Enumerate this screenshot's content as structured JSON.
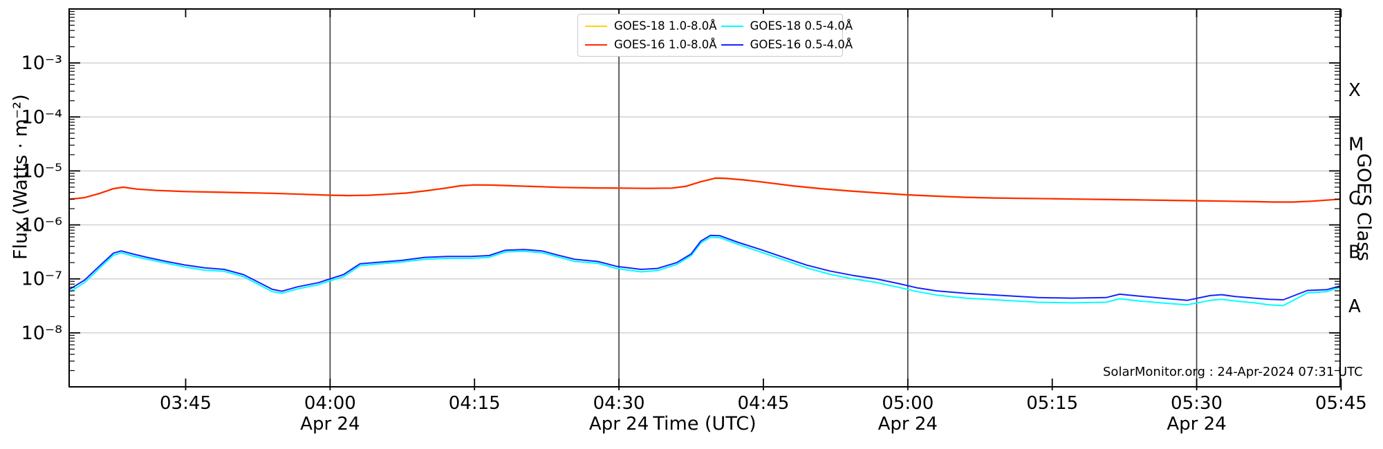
{
  "meta": {
    "source_note": "SolarMonitor.org : 24-Apr-2024 07:31 UTC"
  },
  "axes": {
    "y_label": "Flux (Watts · m⁻²)",
    "y_right_label": "GOES Class",
    "x_label": "Time (UTC)",
    "y_ticks": [
      {
        "label": "10⁻³",
        "exp": -3
      },
      {
        "label": "10⁻⁴",
        "exp": -4
      },
      {
        "label": "10⁻⁵",
        "exp": -5
      },
      {
        "label": "10⁻⁶",
        "exp": -6
      },
      {
        "label": "10⁻⁷",
        "exp": -7
      },
      {
        "label": "10⁻⁸",
        "exp": -8
      }
    ],
    "goes_class_letters": [
      {
        "label": "X",
        "exp": -3.5
      },
      {
        "label": "M",
        "exp": -4.5
      },
      {
        "label": "C",
        "exp": -5.5
      },
      {
        "label": "B",
        "exp": -6.5
      },
      {
        "label": "A",
        "exp": -7.5
      }
    ],
    "x_ticks": [
      {
        "label": "03:45",
        "minutes": 225,
        "day": ""
      },
      {
        "label": "04:00",
        "minutes": 240,
        "day": "Apr 24"
      },
      {
        "label": "04:15",
        "minutes": 255,
        "day": ""
      },
      {
        "label": "04:30",
        "minutes": 270,
        "day": "Apr 24"
      },
      {
        "label": "04:45",
        "minutes": 285,
        "day": ""
      },
      {
        "label": "05:00",
        "minutes": 300,
        "day": "Apr 24"
      },
      {
        "label": "05:15",
        "minutes": 315,
        "day": ""
      },
      {
        "label": "05:30",
        "minutes": 330,
        "day": "Apr 24"
      },
      {
        "label": "05:45",
        "minutes": 345,
        "day": ""
      }
    ],
    "day_line_minutes": [
      240,
      270,
      300,
      330
    ]
  },
  "legend": {
    "items": [
      {
        "label": "GOES-18 1.0-8.0Å",
        "color": "#ffd400"
      },
      {
        "label": "GOES-16 1.0-8.0Å",
        "color": "#ff2a00"
      },
      {
        "label": "GOES-18 0.5-4.0Å",
        "color": "#00ffff"
      },
      {
        "label": "GOES-16 0.5-4.0Å",
        "color": "#1323ff"
      }
    ]
  },
  "chart_data": {
    "type": "line",
    "title": "",
    "xlabel": "Time (UTC)",
    "ylabel": "Flux (Watts · m⁻²)",
    "x_units": "minutes since 00:00 UTC on 24-Apr-2024",
    "x_domain_minutes": [
      212.9,
      344.9
    ],
    "y_log_exp_domain_top_to_bottom": [
      -2,
      -9
    ],
    "grid": "horizontal decade gridlines + vertical day lines at 04:00, 04:30, 05:00, 05:30",
    "legend_position": "top center, 2x2 box",
    "series": [
      {
        "name": "GOES-18 1.0-8.0Å",
        "color": "#ffd400",
        "width": 2.2,
        "note": "hidden beneath GOES-16 long channel",
        "points": [
          [
            213,
            3e-06
          ],
          [
            214.5,
            3.2e-06
          ],
          [
            216,
            3.8e-06
          ],
          [
            217.5,
            4.7e-06
          ],
          [
            218.5,
            5e-06
          ],
          [
            220,
            4.6e-06
          ],
          [
            222,
            4.35e-06
          ],
          [
            225,
            4.15e-06
          ],
          [
            228,
            4.05e-06
          ],
          [
            231,
            3.95e-06
          ],
          [
            234,
            3.85e-06
          ],
          [
            237,
            3.7e-06
          ],
          [
            240,
            3.55e-06
          ],
          [
            242,
            3.5e-06
          ],
          [
            244,
            3.55e-06
          ],
          [
            246,
            3.7e-06
          ],
          [
            248,
            3.9e-06
          ],
          [
            250,
            4.3e-06
          ],
          [
            252,
            4.8e-06
          ],
          [
            253.5,
            5.3e-06
          ],
          [
            255,
            5.5e-06
          ],
          [
            257,
            5.45e-06
          ],
          [
            259,
            5.3e-06
          ],
          [
            261,
            5.15e-06
          ],
          [
            264,
            4.95e-06
          ],
          [
            267,
            4.85e-06
          ],
          [
            270,
            4.8e-06
          ],
          [
            273,
            4.75e-06
          ],
          [
            275.5,
            4.8e-06
          ],
          [
            277,
            5.2e-06
          ],
          [
            278.5,
            6.3e-06
          ],
          [
            280,
            7.35e-06
          ],
          [
            281,
            7.3e-06
          ],
          [
            283,
            6.8e-06
          ],
          [
            285,
            6.2e-06
          ],
          [
            288,
            5.3e-06
          ],
          [
            291,
            4.7e-06
          ],
          [
            294,
            4.25e-06
          ],
          [
            297,
            3.9e-06
          ],
          [
            300,
            3.6e-06
          ],
          [
            303,
            3.4e-06
          ],
          [
            306,
            3.25e-06
          ],
          [
            309,
            3.15e-06
          ],
          [
            312,
            3.1e-06
          ],
          [
            315,
            3.05e-06
          ],
          [
            318,
            3e-06
          ],
          [
            321,
            2.95e-06
          ],
          [
            324,
            2.9e-06
          ],
          [
            327,
            2.85e-06
          ],
          [
            330,
            2.8e-06
          ],
          [
            333,
            2.75e-06
          ],
          [
            336,
            2.7e-06
          ],
          [
            338,
            2.65e-06
          ],
          [
            340,
            2.65e-06
          ],
          [
            342,
            2.75e-06
          ],
          [
            344.9,
            3e-06
          ]
        ]
      },
      {
        "name": "GOES-16 1.0-8.0Å",
        "color": "#ff2a00",
        "width": 2.2,
        "points": [
          [
            213,
            3e-06
          ],
          [
            214.5,
            3.2e-06
          ],
          [
            216,
            3.8e-06
          ],
          [
            217.5,
            4.7e-06
          ],
          [
            218.5,
            5e-06
          ],
          [
            220,
            4.6e-06
          ],
          [
            222,
            4.35e-06
          ],
          [
            225,
            4.15e-06
          ],
          [
            228,
            4.05e-06
          ],
          [
            231,
            3.95e-06
          ],
          [
            234,
            3.85e-06
          ],
          [
            237,
            3.7e-06
          ],
          [
            240,
            3.55e-06
          ],
          [
            242,
            3.5e-06
          ],
          [
            244,
            3.55e-06
          ],
          [
            246,
            3.7e-06
          ],
          [
            248,
            3.9e-06
          ],
          [
            250,
            4.3e-06
          ],
          [
            252,
            4.8e-06
          ],
          [
            253.5,
            5.3e-06
          ],
          [
            255,
            5.5e-06
          ],
          [
            257,
            5.45e-06
          ],
          [
            259,
            5.3e-06
          ],
          [
            261,
            5.15e-06
          ],
          [
            264,
            4.95e-06
          ],
          [
            267,
            4.85e-06
          ],
          [
            270,
            4.8e-06
          ],
          [
            273,
            4.75e-06
          ],
          [
            275.5,
            4.8e-06
          ],
          [
            277,
            5.2e-06
          ],
          [
            278.5,
            6.3e-06
          ],
          [
            280,
            7.35e-06
          ],
          [
            281,
            7.3e-06
          ],
          [
            283,
            6.8e-06
          ],
          [
            285,
            6.2e-06
          ],
          [
            288,
            5.3e-06
          ],
          [
            291,
            4.7e-06
          ],
          [
            294,
            4.25e-06
          ],
          [
            297,
            3.9e-06
          ],
          [
            300,
            3.6e-06
          ],
          [
            303,
            3.4e-06
          ],
          [
            306,
            3.25e-06
          ],
          [
            309,
            3.15e-06
          ],
          [
            312,
            3.1e-06
          ],
          [
            315,
            3.05e-06
          ],
          [
            318,
            3e-06
          ],
          [
            321,
            2.95e-06
          ],
          [
            324,
            2.9e-06
          ],
          [
            327,
            2.85e-06
          ],
          [
            330,
            2.8e-06
          ],
          [
            333,
            2.75e-06
          ],
          [
            336,
            2.7e-06
          ],
          [
            338,
            2.65e-06
          ],
          [
            340,
            2.65e-06
          ],
          [
            342,
            2.75e-06
          ],
          [
            344.9,
            3e-06
          ]
        ]
      },
      {
        "name": "GOES-18 0.5-4.0Å",
        "color": "#00ffff",
        "width": 2.0,
        "points": [
          [
            213,
            5.8e-08
          ],
          [
            214.5,
            8.5e-08
          ],
          [
            216,
            1.55e-07
          ],
          [
            217.5,
            2.75e-07
          ],
          [
            218.3,
            3.05e-07
          ],
          [
            219.5,
            2.65e-07
          ],
          [
            221,
            2.3e-07
          ],
          [
            223,
            1.95e-07
          ],
          [
            225,
            1.65e-07
          ],
          [
            227,
            1.45e-07
          ],
          [
            229,
            1.38e-07
          ],
          [
            231,
            1.1e-07
          ],
          [
            232.5,
            8e-08
          ],
          [
            234,
            5.8e-08
          ],
          [
            235,
            5.4e-08
          ],
          [
            236.6,
            6.5e-08
          ],
          [
            238.8,
            7.8e-08
          ],
          [
            240,
            9.2e-08
          ],
          [
            241.4,
            1.1e-07
          ],
          [
            243.1,
            1.75e-07
          ],
          [
            244.5,
            1.85e-07
          ],
          [
            247.4,
            2.05e-07
          ],
          [
            249.8,
            2.3e-07
          ],
          [
            252.2,
            2.4e-07
          ],
          [
            254.6,
            2.4e-07
          ],
          [
            256.5,
            2.5e-07
          ],
          [
            258.2,
            3.15e-07
          ],
          [
            260.1,
            3.25e-07
          ],
          [
            262,
            3.05e-07
          ],
          [
            263.5,
            2.6e-07
          ],
          [
            265.4,
            2.1e-07
          ],
          [
            267.8,
            1.95e-07
          ],
          [
            269.8,
            1.55e-07
          ],
          [
            271,
            1.45e-07
          ],
          [
            272.3,
            1.35e-07
          ],
          [
            274,
            1.42e-07
          ],
          [
            276,
            1.85e-07
          ],
          [
            277.5,
            2.7e-07
          ],
          [
            278.5,
            4.6e-07
          ],
          [
            279.5,
            5.9e-07
          ],
          [
            280.5,
            5.8e-07
          ],
          [
            282.3,
            4.4e-07
          ],
          [
            284.7,
            3.15e-07
          ],
          [
            287.1,
            2.25e-07
          ],
          [
            289.5,
            1.6e-07
          ],
          [
            291.9,
            1.22e-07
          ],
          [
            294.3,
            1e-07
          ],
          [
            296.7,
            8.6e-08
          ],
          [
            299,
            7e-08
          ],
          [
            301,
            5.8e-08
          ],
          [
            303,
            5e-08
          ],
          [
            306,
            4.4e-08
          ],
          [
            310,
            4e-08
          ],
          [
            313.5,
            3.7e-08
          ],
          [
            317,
            3.6e-08
          ],
          [
            320.6,
            3.7e-08
          ],
          [
            322,
            4.3e-08
          ],
          [
            324,
            3.9e-08
          ],
          [
            327,
            3.5e-08
          ],
          [
            329,
            3.3e-08
          ],
          [
            331.4,
            4e-08
          ],
          [
            332.6,
            4.2e-08
          ],
          [
            334,
            3.9e-08
          ],
          [
            336,
            3.6e-08
          ],
          [
            337.5,
            3.3e-08
          ],
          [
            339,
            3.2e-08
          ],
          [
            341.5,
            5.5e-08
          ],
          [
            343.5,
            5.8e-08
          ],
          [
            344.9,
            7e-08
          ]
        ]
      },
      {
        "name": "GOES-16 0.5-4.0Å",
        "color": "#1323ff",
        "width": 2.0,
        "points": [
          [
            213,
            6.5e-08
          ],
          [
            214.5,
            9.5e-08
          ],
          [
            216,
            1.7e-07
          ],
          [
            217.5,
            3e-07
          ],
          [
            218.3,
            3.3e-07
          ],
          [
            219.5,
            2.9e-07
          ],
          [
            221,
            2.5e-07
          ],
          [
            223,
            2.1e-07
          ],
          [
            225,
            1.8e-07
          ],
          [
            227,
            1.6e-07
          ],
          [
            229,
            1.5e-07
          ],
          [
            231,
            1.2e-07
          ],
          [
            232.5,
            8.8e-08
          ],
          [
            234,
            6.4e-08
          ],
          [
            235,
            5.9e-08
          ],
          [
            236.6,
            7.1e-08
          ],
          [
            238.8,
            8.5e-08
          ],
          [
            240,
            1e-07
          ],
          [
            241.4,
            1.2e-07
          ],
          [
            243.1,
            1.9e-07
          ],
          [
            244.5,
            2e-07
          ],
          [
            247.4,
            2.2e-07
          ],
          [
            249.8,
            2.5e-07
          ],
          [
            252.2,
            2.6e-07
          ],
          [
            254.6,
            2.6e-07
          ],
          [
            256.5,
            2.7e-07
          ],
          [
            258.2,
            3.4e-07
          ],
          [
            260.1,
            3.5e-07
          ],
          [
            262,
            3.3e-07
          ],
          [
            263.5,
            2.8e-07
          ],
          [
            265.4,
            2.3e-07
          ],
          [
            267.8,
            2.1e-07
          ],
          [
            269.8,
            1.7e-07
          ],
          [
            271,
            1.6e-07
          ],
          [
            272.3,
            1.5e-07
          ],
          [
            274,
            1.56e-07
          ],
          [
            276,
            2e-07
          ],
          [
            277.5,
            2.9e-07
          ],
          [
            278.5,
            5e-07
          ],
          [
            279.5,
            6.4e-07
          ],
          [
            280.5,
            6.3e-07
          ],
          [
            282.3,
            4.8e-07
          ],
          [
            284.7,
            3.5e-07
          ],
          [
            287.1,
            2.5e-07
          ],
          [
            289.5,
            1.8e-07
          ],
          [
            291.9,
            1.4e-07
          ],
          [
            294.3,
            1.16e-07
          ],
          [
            296.7,
            1e-07
          ],
          [
            299,
            8.2e-08
          ],
          [
            301,
            6.8e-08
          ],
          [
            303,
            6e-08
          ],
          [
            306,
            5.4e-08
          ],
          [
            310,
            4.9e-08
          ],
          [
            313.5,
            4.5e-08
          ],
          [
            317,
            4.4e-08
          ],
          [
            320.6,
            4.5e-08
          ],
          [
            322,
            5.2e-08
          ],
          [
            324,
            4.8e-08
          ],
          [
            327,
            4.3e-08
          ],
          [
            329,
            4e-08
          ],
          [
            331.4,
            4.9e-08
          ],
          [
            332.6,
            5.1e-08
          ],
          [
            334,
            4.7e-08
          ],
          [
            336,
            4.4e-08
          ],
          [
            337.5,
            4.2e-08
          ],
          [
            339,
            4.1e-08
          ],
          [
            341.5,
            6.1e-08
          ],
          [
            343.5,
            6.3e-08
          ],
          [
            344.9,
            7.4e-08
          ]
        ]
      }
    ]
  },
  "style_colors": {
    "gridline": "#c8c8c8",
    "day_line": "#3a3a3a",
    "spine": "#000000"
  }
}
